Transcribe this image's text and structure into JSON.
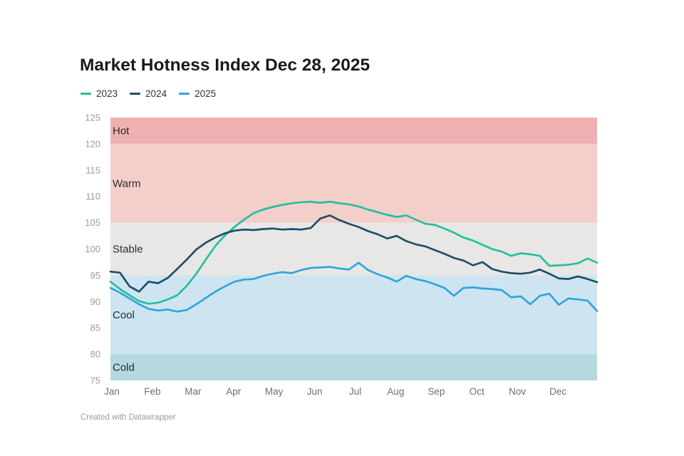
{
  "footer": {
    "credit": "Created with Datawrapper"
  },
  "chart_data": {
    "type": "line",
    "title": "Market Hotness Index Dec 28, 2025",
    "xlabel": "",
    "ylabel": "",
    "x_unit": "weekly points, Jan through Dec",
    "x_tick_labels": [
      "Jan",
      "Feb",
      "Mar",
      "Apr",
      "May",
      "Jun",
      "Jul",
      "Aug",
      "Sep",
      "Oct",
      "Nov",
      "Dec"
    ],
    "ylim": [
      75,
      125
    ],
    "y_ticks": [
      125,
      120,
      115,
      110,
      105,
      100,
      95,
      90,
      85,
      80,
      75
    ],
    "grid": false,
    "legend_position": "top-left",
    "bands": [
      {
        "label": "Hot",
        "from": 120,
        "to": 125,
        "color": "#efb0b2"
      },
      {
        "label": "Warm",
        "from": 105,
        "to": 120,
        "color": "#f3cfca"
      },
      {
        "label": "Stable",
        "from": 95,
        "to": 105,
        "color": "#e8e7e6"
      },
      {
        "label": "Cool",
        "from": 80,
        "to": 95,
        "color": "#cfe4f1"
      },
      {
        "label": "Cold",
        "from": 75,
        "to": 80,
        "color": "#b6d9df"
      }
    ],
    "series": [
      {
        "name": "2023",
        "color": "#25bea1",
        "values": [
          93.8,
          92.4,
          91.2,
          90.1,
          89.6,
          89.8,
          90.4,
          91.2,
          93.0,
          95.3,
          98.0,
          100.6,
          102.6,
          104.2,
          105.6,
          106.8,
          107.5,
          108.0,
          108.4,
          108.7,
          108.9,
          109.0,
          108.8,
          109.0,
          108.7,
          108.5,
          108.1,
          107.5,
          107.0,
          106.5,
          106.1,
          106.4,
          105.6,
          104.8,
          104.6,
          103.9,
          103.1,
          102.2,
          101.6,
          100.8,
          100.0,
          99.5,
          98.7,
          99.2,
          99.0,
          98.7,
          96.8,
          96.9,
          97.0,
          97.3,
          98.2,
          97.4
        ]
      },
      {
        "name": "2024",
        "color": "#1d4f66",
        "values": [
          95.7,
          95.5,
          92.9,
          91.9,
          93.8,
          93.5,
          94.5,
          96.2,
          98.0,
          99.9,
          101.2,
          102.2,
          103.0,
          103.5,
          103.7,
          103.6,
          103.8,
          103.9,
          103.7,
          103.8,
          103.7,
          104.0,
          105.8,
          106.4,
          105.5,
          104.8,
          104.2,
          103.4,
          102.8,
          102.0,
          102.5,
          101.5,
          100.9,
          100.5,
          99.8,
          99.1,
          98.3,
          97.8,
          96.9,
          97.5,
          96.2,
          95.7,
          95.4,
          95.3,
          95.5,
          96.1,
          95.3,
          94.4,
          94.3,
          94.8,
          94.3,
          93.7
        ]
      },
      {
        "name": "2025",
        "color": "#2fa6dc",
        "values": [
          92.6,
          91.7,
          90.6,
          89.5,
          88.6,
          88.3,
          88.5,
          88.1,
          88.4,
          89.5,
          90.7,
          91.9,
          92.9,
          93.8,
          94.2,
          94.3,
          94.9,
          95.3,
          95.6,
          95.4,
          96.0,
          96.4,
          96.5,
          96.6,
          96.3,
          96.1,
          97.4,
          96.0,
          95.2,
          94.6,
          93.8,
          94.9,
          94.3,
          93.9,
          93.3,
          92.6,
          91.1,
          92.6,
          92.7,
          92.5,
          92.4,
          92.2,
          90.8,
          91.0,
          89.5,
          91.1,
          91.5,
          89.4,
          90.6,
          90.4,
          90.2,
          88.2
        ]
      }
    ]
  }
}
